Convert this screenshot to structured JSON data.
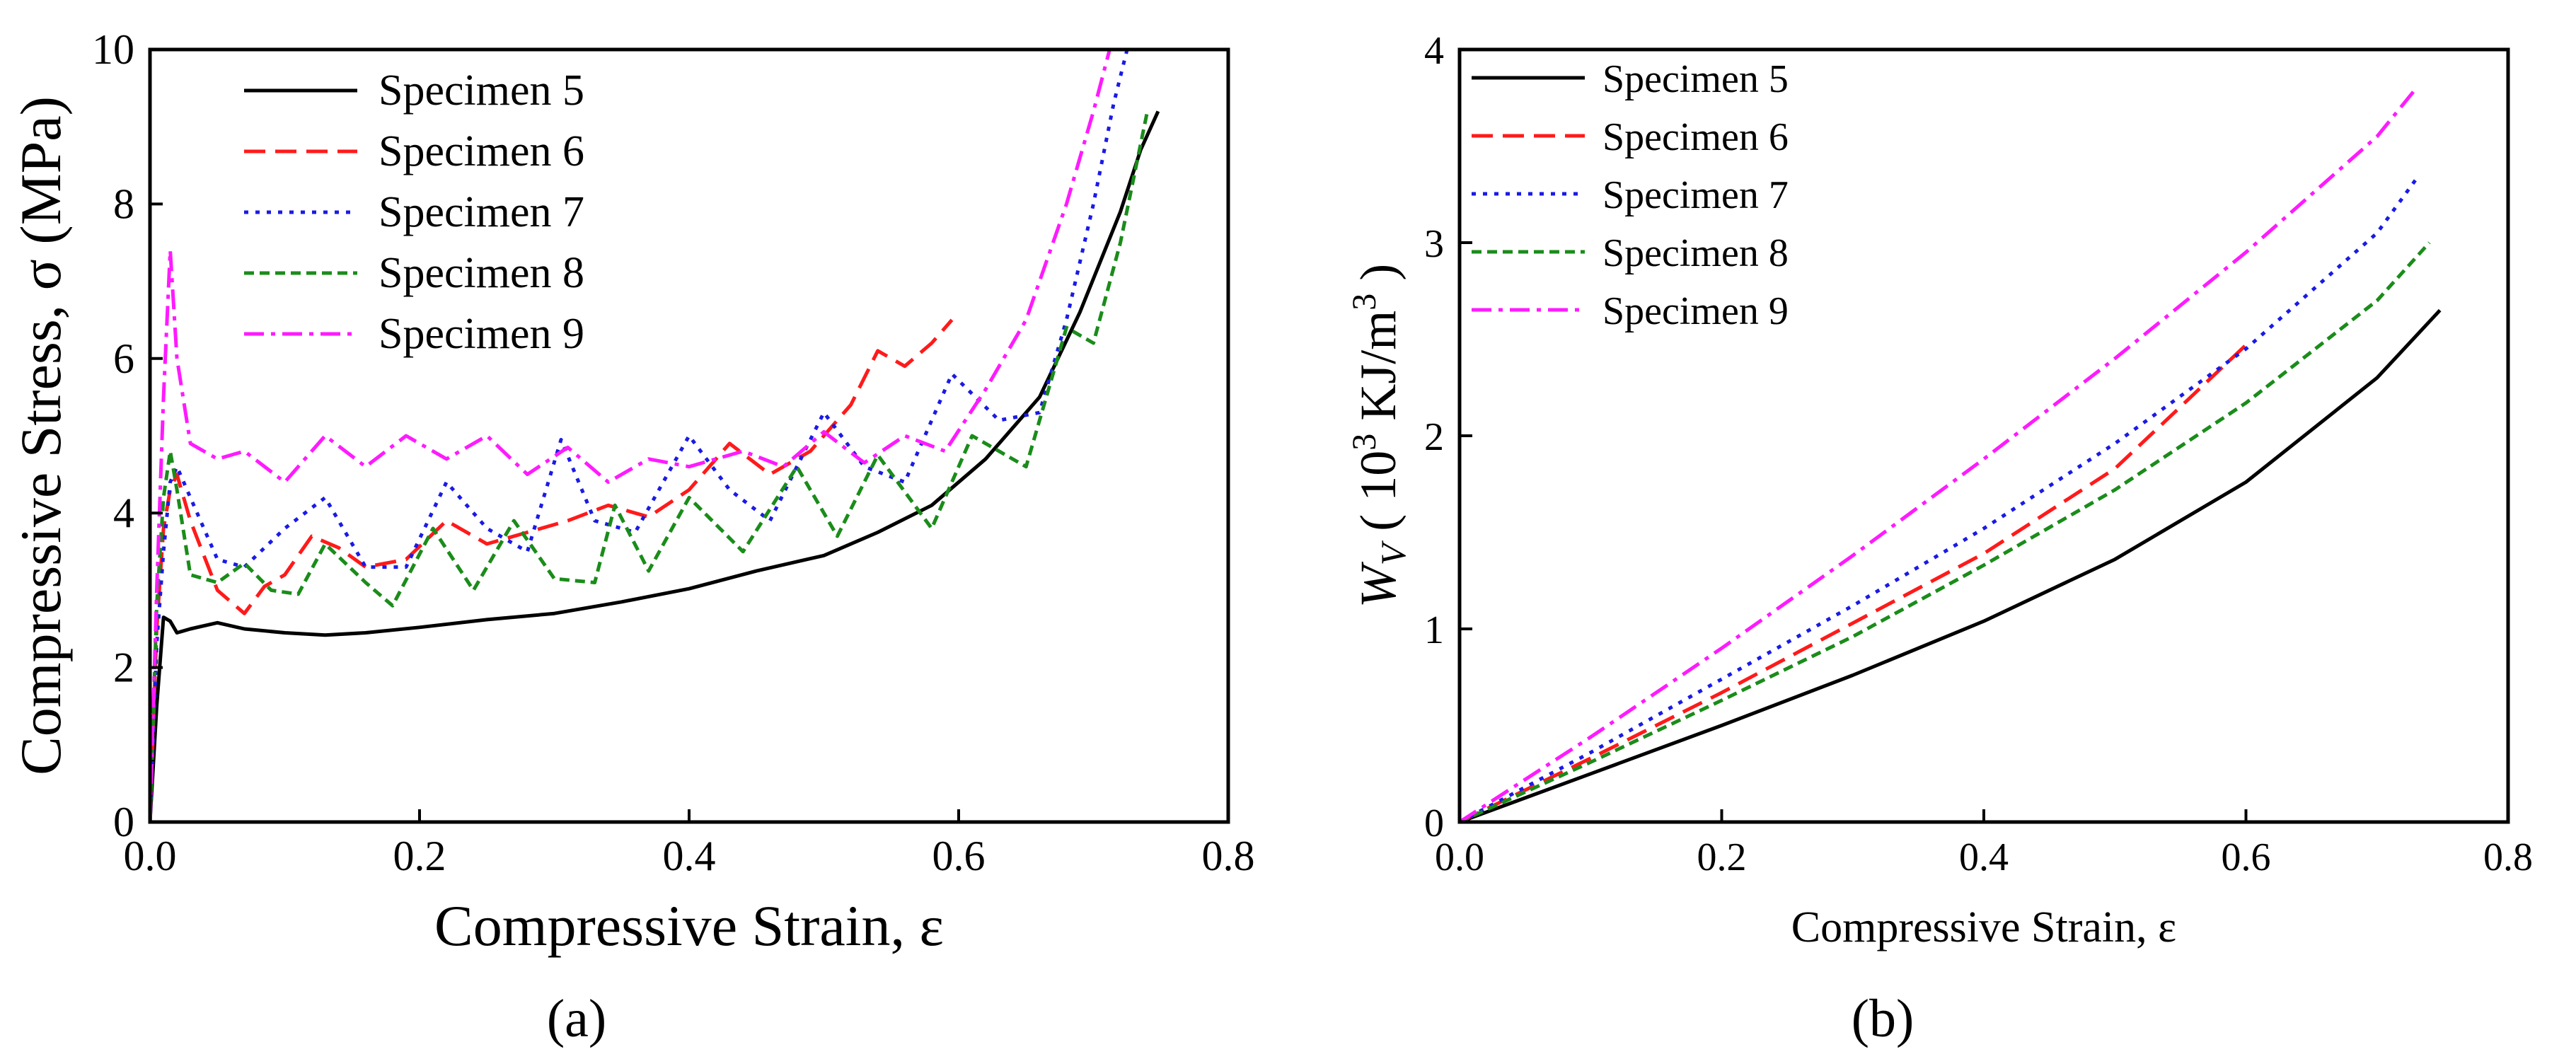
{
  "panel_labels": [
    "(a)",
    "(b)"
  ],
  "chart_data": [
    {
      "type": "line",
      "panel": "a",
      "xlabel": "Compressive Strain, ε",
      "ylabel": "Compressive Stress, σ (MPa)",
      "xlim": [
        0.0,
        0.8
      ],
      "ylim": [
        0,
        10
      ],
      "xticks": [
        0.0,
        0.2,
        0.4,
        0.6,
        0.8
      ],
      "xtick_labels": [
        "0.0",
        "0.2",
        "0.4",
        "0.6",
        "0.8"
      ],
      "yticks": [
        0,
        2,
        4,
        6,
        8,
        10
      ],
      "ytick_labels": [
        "0",
        "2",
        "4",
        "6",
        "8",
        "10"
      ],
      "grid": false,
      "legend_position": "top-left",
      "series": [
        {
          "name": "Specimen 5",
          "color": "#000000",
          "dash": "solid",
          "points": [
            [
              0,
              0
            ],
            [
              0.005,
              1.5
            ],
            [
              0.01,
              2.65
            ],
            [
              0.015,
              2.6
            ],
            [
              0.02,
              2.45
            ],
            [
              0.03,
              2.5
            ],
            [
              0.05,
              2.58
            ],
            [
              0.07,
              2.5
            ],
            [
              0.1,
              2.45
            ],
            [
              0.13,
              2.42
            ],
            [
              0.16,
              2.45
            ],
            [
              0.2,
              2.52
            ],
            [
              0.25,
              2.62
            ],
            [
              0.3,
              2.7
            ],
            [
              0.35,
              2.85
            ],
            [
              0.4,
              3.02
            ],
            [
              0.45,
              3.25
            ],
            [
              0.5,
              3.45
            ],
            [
              0.54,
              3.75
            ],
            [
              0.58,
              4.1
            ],
            [
              0.62,
              4.7
            ],
            [
              0.66,
              5.5
            ],
            [
              0.69,
              6.6
            ],
            [
              0.72,
              7.9
            ],
            [
              0.735,
              8.7
            ],
            [
              0.748,
              9.2
            ]
          ]
        },
        {
          "name": "Specimen 6",
          "color": "#ff1a1a",
          "dash": "dashed",
          "points": [
            [
              0,
              0
            ],
            [
              0.005,
              2.5
            ],
            [
              0.01,
              3.8
            ],
            [
              0.015,
              4.3
            ],
            [
              0.02,
              4.5
            ],
            [
              0.03,
              3.9
            ],
            [
              0.05,
              3.0
            ],
            [
              0.07,
              2.7
            ],
            [
              0.085,
              3.05
            ],
            [
              0.1,
              3.2
            ],
            [
              0.12,
              3.7
            ],
            [
              0.14,
              3.55
            ],
            [
              0.16,
              3.3
            ],
            [
              0.19,
              3.4
            ],
            [
              0.22,
              3.9
            ],
            [
              0.25,
              3.6
            ],
            [
              0.28,
              3.75
            ],
            [
              0.31,
              3.9
            ],
            [
              0.34,
              4.1
            ],
            [
              0.37,
              3.95
            ],
            [
              0.4,
              4.3
            ],
            [
              0.43,
              4.9
            ],
            [
              0.46,
              4.5
            ],
            [
              0.49,
              4.8
            ],
            [
              0.52,
              5.4
            ],
            [
              0.54,
              6.1
            ],
            [
              0.56,
              5.9
            ],
            [
              0.58,
              6.2
            ],
            [
              0.595,
              6.5
            ]
          ]
        },
        {
          "name": "Specimen 7",
          "color": "#1a1ae6",
          "dash": "dotted",
          "points": [
            [
              0,
              0
            ],
            [
              0.005,
              2.3
            ],
            [
              0.01,
              3.5
            ],
            [
              0.015,
              4.4
            ],
            [
              0.02,
              4.6
            ],
            [
              0.03,
              4.2
            ],
            [
              0.05,
              3.4
            ],
            [
              0.07,
              3.3
            ],
            [
              0.1,
              3.8
            ],
            [
              0.13,
              4.2
            ],
            [
              0.16,
              3.3
            ],
            [
              0.19,
              3.3
            ],
            [
              0.22,
              4.4
            ],
            [
              0.25,
              3.8
            ],
            [
              0.28,
              3.5
            ],
            [
              0.305,
              4.95
            ],
            [
              0.33,
              3.9
            ],
            [
              0.36,
              3.75
            ],
            [
              0.4,
              5.0
            ],
            [
              0.43,
              4.3
            ],
            [
              0.46,
              3.9
            ],
            [
              0.5,
              5.3
            ],
            [
              0.53,
              4.6
            ],
            [
              0.56,
              4.4
            ],
            [
              0.595,
              5.8
            ],
            [
              0.63,
              5.2
            ],
            [
              0.66,
              5.3
            ],
            [
              0.68,
              6.5
            ],
            [
              0.7,
              8.0
            ],
            [
              0.715,
              9.3
            ],
            [
              0.725,
              10.0
            ]
          ]
        },
        {
          "name": "Specimen 8",
          "color": "#1a8c1a",
          "dash": "short-dashed",
          "points": [
            [
              0,
              0
            ],
            [
              0.005,
              2.8
            ],
            [
              0.01,
              4.2
            ],
            [
              0.015,
              4.8
            ],
            [
              0.02,
              4.3
            ],
            [
              0.03,
              3.2
            ],
            [
              0.05,
              3.1
            ],
            [
              0.07,
              3.35
            ],
            [
              0.09,
              3.0
            ],
            [
              0.11,
              2.95
            ],
            [
              0.13,
              3.6
            ],
            [
              0.16,
              3.1
            ],
            [
              0.18,
              2.8
            ],
            [
              0.21,
              3.8
            ],
            [
              0.24,
              3.0
            ],
            [
              0.27,
              3.9
            ],
            [
              0.3,
              3.15
            ],
            [
              0.33,
              3.1
            ],
            [
              0.345,
              4.1
            ],
            [
              0.37,
              3.25
            ],
            [
              0.4,
              4.2
            ],
            [
              0.44,
              3.5
            ],
            [
              0.48,
              4.6
            ],
            [
              0.51,
              3.7
            ],
            [
              0.54,
              4.75
            ],
            [
              0.58,
              3.8
            ],
            [
              0.61,
              5.0
            ],
            [
              0.65,
              4.6
            ],
            [
              0.68,
              6.4
            ],
            [
              0.7,
              6.2
            ],
            [
              0.72,
              7.5
            ],
            [
              0.74,
              9.2
            ]
          ]
        },
        {
          "name": "Specimen 9",
          "color": "#ff1aff",
          "dash": "dash-dot",
          "points": [
            [
              0,
              0
            ],
            [
              0.005,
              3.0
            ],
            [
              0.01,
              5.5
            ],
            [
              0.015,
              7.4
            ],
            [
              0.02,
              6.0
            ],
            [
              0.03,
              4.9
            ],
            [
              0.05,
              4.7
            ],
            [
              0.07,
              4.8
            ],
            [
              0.1,
              4.4
            ],
            [
              0.13,
              5.0
            ],
            [
              0.16,
              4.6
            ],
            [
              0.19,
              5.0
            ],
            [
              0.22,
              4.7
            ],
            [
              0.25,
              5.0
            ],
            [
              0.28,
              4.5
            ],
            [
              0.31,
              4.85
            ],
            [
              0.34,
              4.4
            ],
            [
              0.37,
              4.7
            ],
            [
              0.4,
              4.6
            ],
            [
              0.44,
              4.8
            ],
            [
              0.47,
              4.6
            ],
            [
              0.5,
              5.05
            ],
            [
              0.53,
              4.65
            ],
            [
              0.56,
              5.0
            ],
            [
              0.59,
              4.8
            ],
            [
              0.62,
              5.6
            ],
            [
              0.65,
              6.5
            ],
            [
              0.68,
              8.0
            ],
            [
              0.7,
              9.2
            ],
            [
              0.712,
              10.0
            ]
          ]
        }
      ]
    },
    {
      "type": "line",
      "panel": "b",
      "xlabel": "Compressive Strain, ε",
      "ylabel": "W_V ( 10^3 KJ/m^3 )",
      "xlim": [
        0.0,
        0.8
      ],
      "ylim": [
        0,
        4
      ],
      "xticks": [
        0.0,
        0.2,
        0.4,
        0.6,
        0.8
      ],
      "xtick_labels": [
        "0.0",
        "0.2",
        "0.4",
        "0.6",
        "0.8"
      ],
      "yticks": [
        0,
        1,
        2,
        3,
        4
      ],
      "ytick_labels": [
        "0",
        "1",
        "2",
        "3",
        "4"
      ],
      "grid": false,
      "legend_position": "top-left",
      "series": [
        {
          "name": "Specimen 5",
          "color": "#000000",
          "dash": "solid",
          "points": [
            [
              0,
              0
            ],
            [
              0.1,
              0.25
            ],
            [
              0.2,
              0.5
            ],
            [
              0.3,
              0.76
            ],
            [
              0.4,
              1.04
            ],
            [
              0.5,
              1.36
            ],
            [
              0.6,
              1.76
            ],
            [
              0.7,
              2.3
            ],
            [
              0.748,
              2.65
            ]
          ]
        },
        {
          "name": "Specimen 6",
          "color": "#ff1a1a",
          "dash": "dashed",
          "points": [
            [
              0,
              0
            ],
            [
              0.1,
              0.33
            ],
            [
              0.2,
              0.67
            ],
            [
              0.3,
              1.03
            ],
            [
              0.4,
              1.39
            ],
            [
              0.5,
              1.83
            ],
            [
              0.6,
              2.47
            ]
          ]
        },
        {
          "name": "Specimen 7",
          "color": "#1a1ae6",
          "dash": "dotted",
          "points": [
            [
              0,
              0
            ],
            [
              0.1,
              0.36
            ],
            [
              0.2,
              0.74
            ],
            [
              0.3,
              1.12
            ],
            [
              0.4,
              1.52
            ],
            [
              0.5,
              1.96
            ],
            [
              0.6,
              2.45
            ],
            [
              0.7,
              3.05
            ],
            [
              0.73,
              3.33
            ]
          ]
        },
        {
          "name": "Specimen 8",
          "color": "#1a8c1a",
          "dash": "short-dashed",
          "points": [
            [
              0,
              0
            ],
            [
              0.1,
              0.31
            ],
            [
              0.2,
              0.63
            ],
            [
              0.3,
              0.96
            ],
            [
              0.4,
              1.33
            ],
            [
              0.5,
              1.72
            ],
            [
              0.6,
              2.17
            ],
            [
              0.7,
              2.7
            ],
            [
              0.74,
              3.0
            ]
          ]
        },
        {
          "name": "Specimen 9",
          "color": "#ff1aff",
          "dash": "dash-dot",
          "points": [
            [
              0,
              0
            ],
            [
              0.1,
              0.44
            ],
            [
              0.2,
              0.9
            ],
            [
              0.3,
              1.38
            ],
            [
              0.4,
              1.88
            ],
            [
              0.5,
              2.4
            ],
            [
              0.6,
              2.95
            ],
            [
              0.7,
              3.55
            ],
            [
              0.73,
              3.8
            ]
          ]
        }
      ]
    }
  ]
}
